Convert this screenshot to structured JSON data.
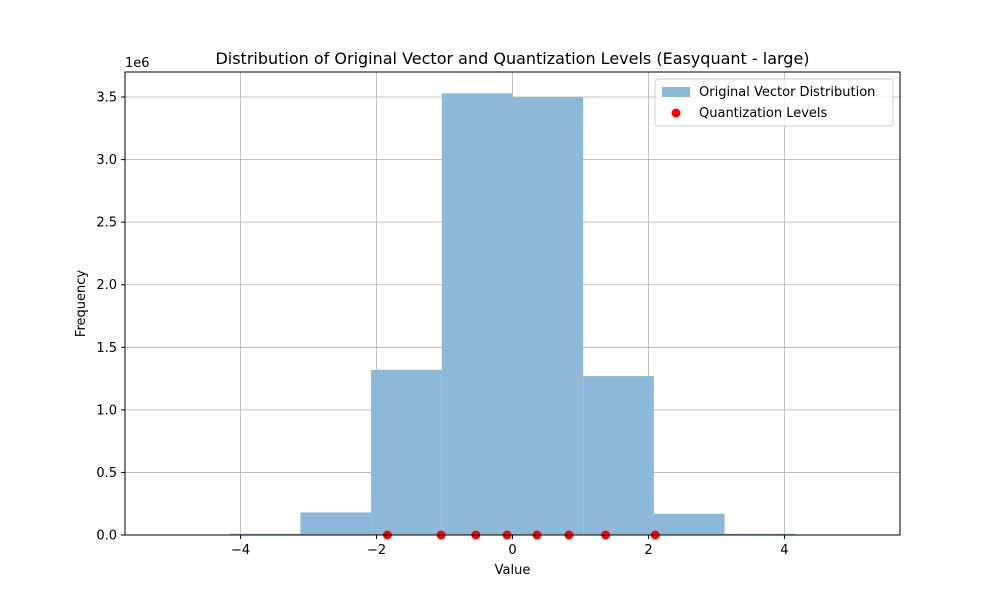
{
  "chart_data": {
    "type": "bar",
    "title": "Distribution of Original Vector and Quantization Levels (Easyquant - large)",
    "xlabel": "Value",
    "ylabel": "Frequency",
    "y_multiplier_label": "1e6",
    "xlim": [
      -5.7,
      5.7
    ],
    "ylim": [
      0,
      3.7
    ],
    "x_ticks": [
      -4,
      -2,
      0,
      2,
      4
    ],
    "x_tick_labels": [
      "−4",
      "−2",
      "0",
      "2",
      "4"
    ],
    "y_ticks": [
      0,
      0.5,
      1.0,
      1.5,
      2.0,
      2.5,
      3.0,
      3.5
    ],
    "y_tick_labels": [
      "0.0",
      "0.5",
      "1.0",
      "1.5",
      "2.0",
      "2.5",
      "3.0",
      "3.5"
    ],
    "grid": true,
    "legend_position": "top-right",
    "series": [
      {
        "name": "Original Vector Distribution",
        "kind": "histogram",
        "color": "#8db9d9",
        "bin_edges": [
          -5.2,
          -4.16,
          -3.12,
          -2.08,
          -1.04,
          0.0,
          1.04,
          2.08,
          3.12,
          4.16,
          5.2
        ],
        "values": [
          0.001,
          0.01,
          0.18,
          1.32,
          3.53,
          3.5,
          1.27,
          0.17,
          0.01,
          0.001
        ]
      },
      {
        "name": "Quantization Levels",
        "kind": "scatter",
        "color": "#ff0000",
        "x": [
          -1.84,
          -1.05,
          -0.54,
          -0.08,
          0.36,
          0.83,
          1.37,
          2.1
        ],
        "y": [
          0,
          0,
          0,
          0,
          0,
          0,
          0,
          0
        ]
      }
    ]
  }
}
